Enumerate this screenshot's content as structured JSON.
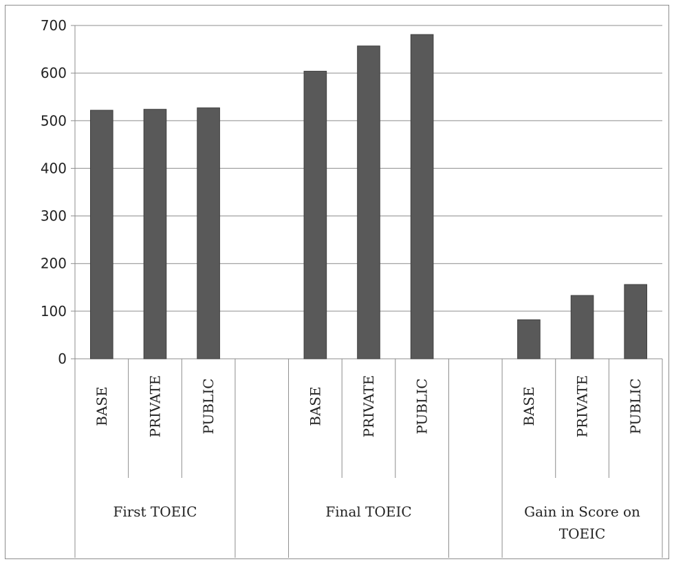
{
  "chart_data": {
    "type": "bar",
    "title": "",
    "xlabel": "",
    "ylabel": "",
    "ylim": [
      0,
      700
    ],
    "yticks": [
      0,
      100,
      200,
      300,
      400,
      500,
      600,
      700
    ],
    "grid": true,
    "legend": "none",
    "bar_color": "#595959",
    "groups": [
      {
        "label": "First TOEIC",
        "categories": [
          "BASE",
          "PRIVATE",
          "PUBLIC"
        ],
        "values": [
          522,
          524,
          527
        ]
      },
      {
        "label": "Final TOEIC",
        "categories": [
          "BASE",
          "PRIVATE",
          "PUBLIC"
        ],
        "values": [
          604,
          657,
          681
        ]
      },
      {
        "label": "Gain in Score on TOEIC",
        "categories": [
          "BASE",
          "PRIVATE",
          "PUBLIC"
        ],
        "values": [
          82,
          133,
          156
        ]
      }
    ]
  }
}
